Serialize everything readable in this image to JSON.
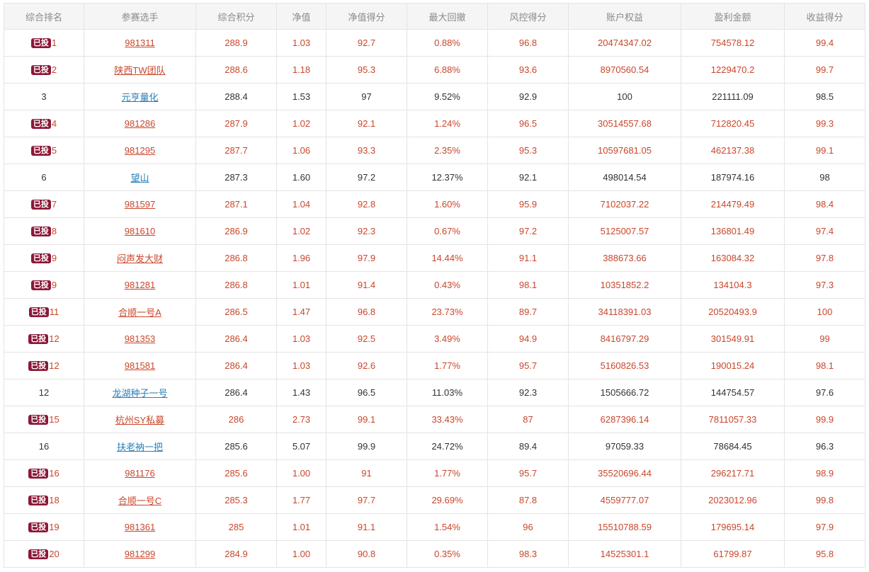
{
  "table": {
    "columns": [
      "综合排名",
      "参赛选手",
      "综合积分",
      "净值",
      "净值得分",
      "最大回撤",
      "风控得分",
      "账户权益",
      "盈利金额",
      "收益得分"
    ],
    "badge_label": "已投",
    "colors": {
      "invested_text": "#c9462b",
      "plain_link": "#2c7fb8",
      "badge_bg": "#8c1838"
    },
    "rows": [
      {
        "invested": true,
        "rank": "1",
        "player": "981311",
        "score": "288.9",
        "nav": "1.03",
        "nav_score": "92.7",
        "drawdown": "0.88%",
        "risk_score": "96.8",
        "equity": "20474347.02",
        "profit": "754578.12",
        "return_score": "99.4"
      },
      {
        "invested": true,
        "rank": "2",
        "player": "陕西TW团队",
        "score": "288.6",
        "nav": "1.18",
        "nav_score": "95.3",
        "drawdown": "6.88%",
        "risk_score": "93.6",
        "equity": "8970560.54",
        "profit": "1229470.2",
        "return_score": "99.7"
      },
      {
        "invested": false,
        "rank": "3",
        "player": "元亨量化",
        "score": "288.4",
        "nav": "1.53",
        "nav_score": "97",
        "drawdown": "9.52%",
        "risk_score": "92.9",
        "equity": "100",
        "profit": "221111.09",
        "return_score": "98.5"
      },
      {
        "invested": true,
        "rank": "4",
        "player": "981286",
        "score": "287.9",
        "nav": "1.02",
        "nav_score": "92.1",
        "drawdown": "1.24%",
        "risk_score": "96.5",
        "equity": "30514557.68",
        "profit": "712820.45",
        "return_score": "99.3"
      },
      {
        "invested": true,
        "rank": "5",
        "player": "981295",
        "score": "287.7",
        "nav": "1.06",
        "nav_score": "93.3",
        "drawdown": "2.35%",
        "risk_score": "95.3",
        "equity": "10597681.05",
        "profit": "462137.38",
        "return_score": "99.1"
      },
      {
        "invested": false,
        "rank": "6",
        "player": "望山",
        "score": "287.3",
        "nav": "1.60",
        "nav_score": "97.2",
        "drawdown": "12.37%",
        "risk_score": "92.1",
        "equity": "498014.54",
        "profit": "187974.16",
        "return_score": "98"
      },
      {
        "invested": true,
        "rank": "7",
        "player": "981597",
        "score": "287.1",
        "nav": "1.04",
        "nav_score": "92.8",
        "drawdown": "1.60%",
        "risk_score": "95.9",
        "equity": "7102037.22",
        "profit": "214479.49",
        "return_score": "98.4"
      },
      {
        "invested": true,
        "rank": "8",
        "player": "981610",
        "score": "286.9",
        "nav": "1.02",
        "nav_score": "92.3",
        "drawdown": "0.67%",
        "risk_score": "97.2",
        "equity": "5125007.57",
        "profit": "136801.49",
        "return_score": "97.4"
      },
      {
        "invested": true,
        "rank": "9",
        "player": "闷声发大财",
        "score": "286.8",
        "nav": "1.96",
        "nav_score": "97.9",
        "drawdown": "14.44%",
        "risk_score": "91.1",
        "equity": "388673.66",
        "profit": "163084.32",
        "return_score": "97.8"
      },
      {
        "invested": true,
        "rank": "9",
        "player": "981281",
        "score": "286.8",
        "nav": "1.01",
        "nav_score": "91.4",
        "drawdown": "0.43%",
        "risk_score": "98.1",
        "equity": "10351852.2",
        "profit": "134104.3",
        "return_score": "97.3"
      },
      {
        "invested": true,
        "rank": "11",
        "player": "合顺一号A",
        "score": "286.5",
        "nav": "1.47",
        "nav_score": "96.8",
        "drawdown": "23.73%",
        "risk_score": "89.7",
        "equity": "34118391.03",
        "profit": "20520493.9",
        "return_score": "100"
      },
      {
        "invested": true,
        "rank": "12",
        "player": "981353",
        "score": "286.4",
        "nav": "1.03",
        "nav_score": "92.5",
        "drawdown": "3.49%",
        "risk_score": "94.9",
        "equity": "8416797.29",
        "profit": "301549.91",
        "return_score": "99"
      },
      {
        "invested": true,
        "rank": "12",
        "player": "981581",
        "score": "286.4",
        "nav": "1.03",
        "nav_score": "92.6",
        "drawdown": "1.77%",
        "risk_score": "95.7",
        "equity": "5160826.53",
        "profit": "190015.24",
        "return_score": "98.1"
      },
      {
        "invested": false,
        "rank": "12",
        "player": "龙湖种子一号",
        "score": "286.4",
        "nav": "1.43",
        "nav_score": "96.5",
        "drawdown": "11.03%",
        "risk_score": "92.3",
        "equity": "1505666.72",
        "profit": "144754.57",
        "return_score": "97.6"
      },
      {
        "invested": true,
        "rank": "15",
        "player": "杭州SY私募",
        "score": "286",
        "nav": "2.73",
        "nav_score": "99.1",
        "drawdown": "33.43%",
        "risk_score": "87",
        "equity": "6287396.14",
        "profit": "7811057.33",
        "return_score": "99.9"
      },
      {
        "invested": false,
        "rank": "16",
        "player": "扶老衲一把",
        "score": "285.6",
        "nav": "5.07",
        "nav_score": "99.9",
        "drawdown": "24.72%",
        "risk_score": "89.4",
        "equity": "97059.33",
        "profit": "78684.45",
        "return_score": "96.3"
      },
      {
        "invested": true,
        "rank": "16",
        "player": "981176",
        "score": "285.6",
        "nav": "1.00",
        "nav_score": "91",
        "drawdown": "1.77%",
        "risk_score": "95.7",
        "equity": "35520696.44",
        "profit": "296217.71",
        "return_score": "98.9"
      },
      {
        "invested": true,
        "rank": "18",
        "player": "合顺一号C",
        "score": "285.3",
        "nav": "1.77",
        "nav_score": "97.7",
        "drawdown": "29.69%",
        "risk_score": "87.8",
        "equity": "4559777.07",
        "profit": "2023012.96",
        "return_score": "99.8"
      },
      {
        "invested": true,
        "rank": "19",
        "player": "981361",
        "score": "285",
        "nav": "1.01",
        "nav_score": "91.1",
        "drawdown": "1.54%",
        "risk_score": "96",
        "equity": "15510788.59",
        "profit": "179695.14",
        "return_score": "97.9"
      },
      {
        "invested": true,
        "rank": "20",
        "player": "981299",
        "score": "284.9",
        "nav": "1.00",
        "nav_score": "90.8",
        "drawdown": "0.35%",
        "risk_score": "98.3",
        "equity": "14525301.1",
        "profit": "61799.87",
        "return_score": "95.8"
      }
    ]
  }
}
